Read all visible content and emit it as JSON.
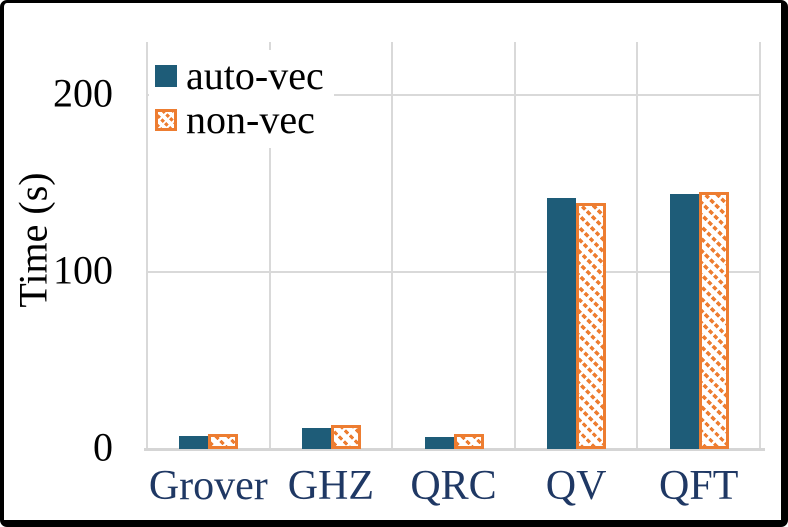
{
  "colors": {
    "auto_vec_fill": "#1e5c78",
    "non_vec_stroke": "#ed7d31",
    "gridline": "#d9d9d9",
    "category_label": "#1f3864",
    "axis_text": "#000000",
    "frame_border": "#000000",
    "background": "#ffffff"
  },
  "chart_data": {
    "type": "bar",
    "title": "",
    "xlabel": "",
    "ylabel": "Time (s)",
    "categories": [
      "Grover",
      "GHZ",
      "QRC",
      "QV",
      "QFT"
    ],
    "series": [
      {
        "name": "auto-vec",
        "style": "solid",
        "color": "#1e5c78",
        "values": [
          7.5,
          12,
          7,
          142,
          144
        ]
      },
      {
        "name": "non-vec",
        "style": "hatched",
        "color": "#ed7d31",
        "values": [
          8.5,
          13.5,
          8.5,
          139,
          145
        ]
      }
    ],
    "y_ticks": [
      0,
      100,
      200
    ],
    "ylim": [
      0,
      230
    ],
    "grid": true,
    "legend_position": "top-left"
  }
}
